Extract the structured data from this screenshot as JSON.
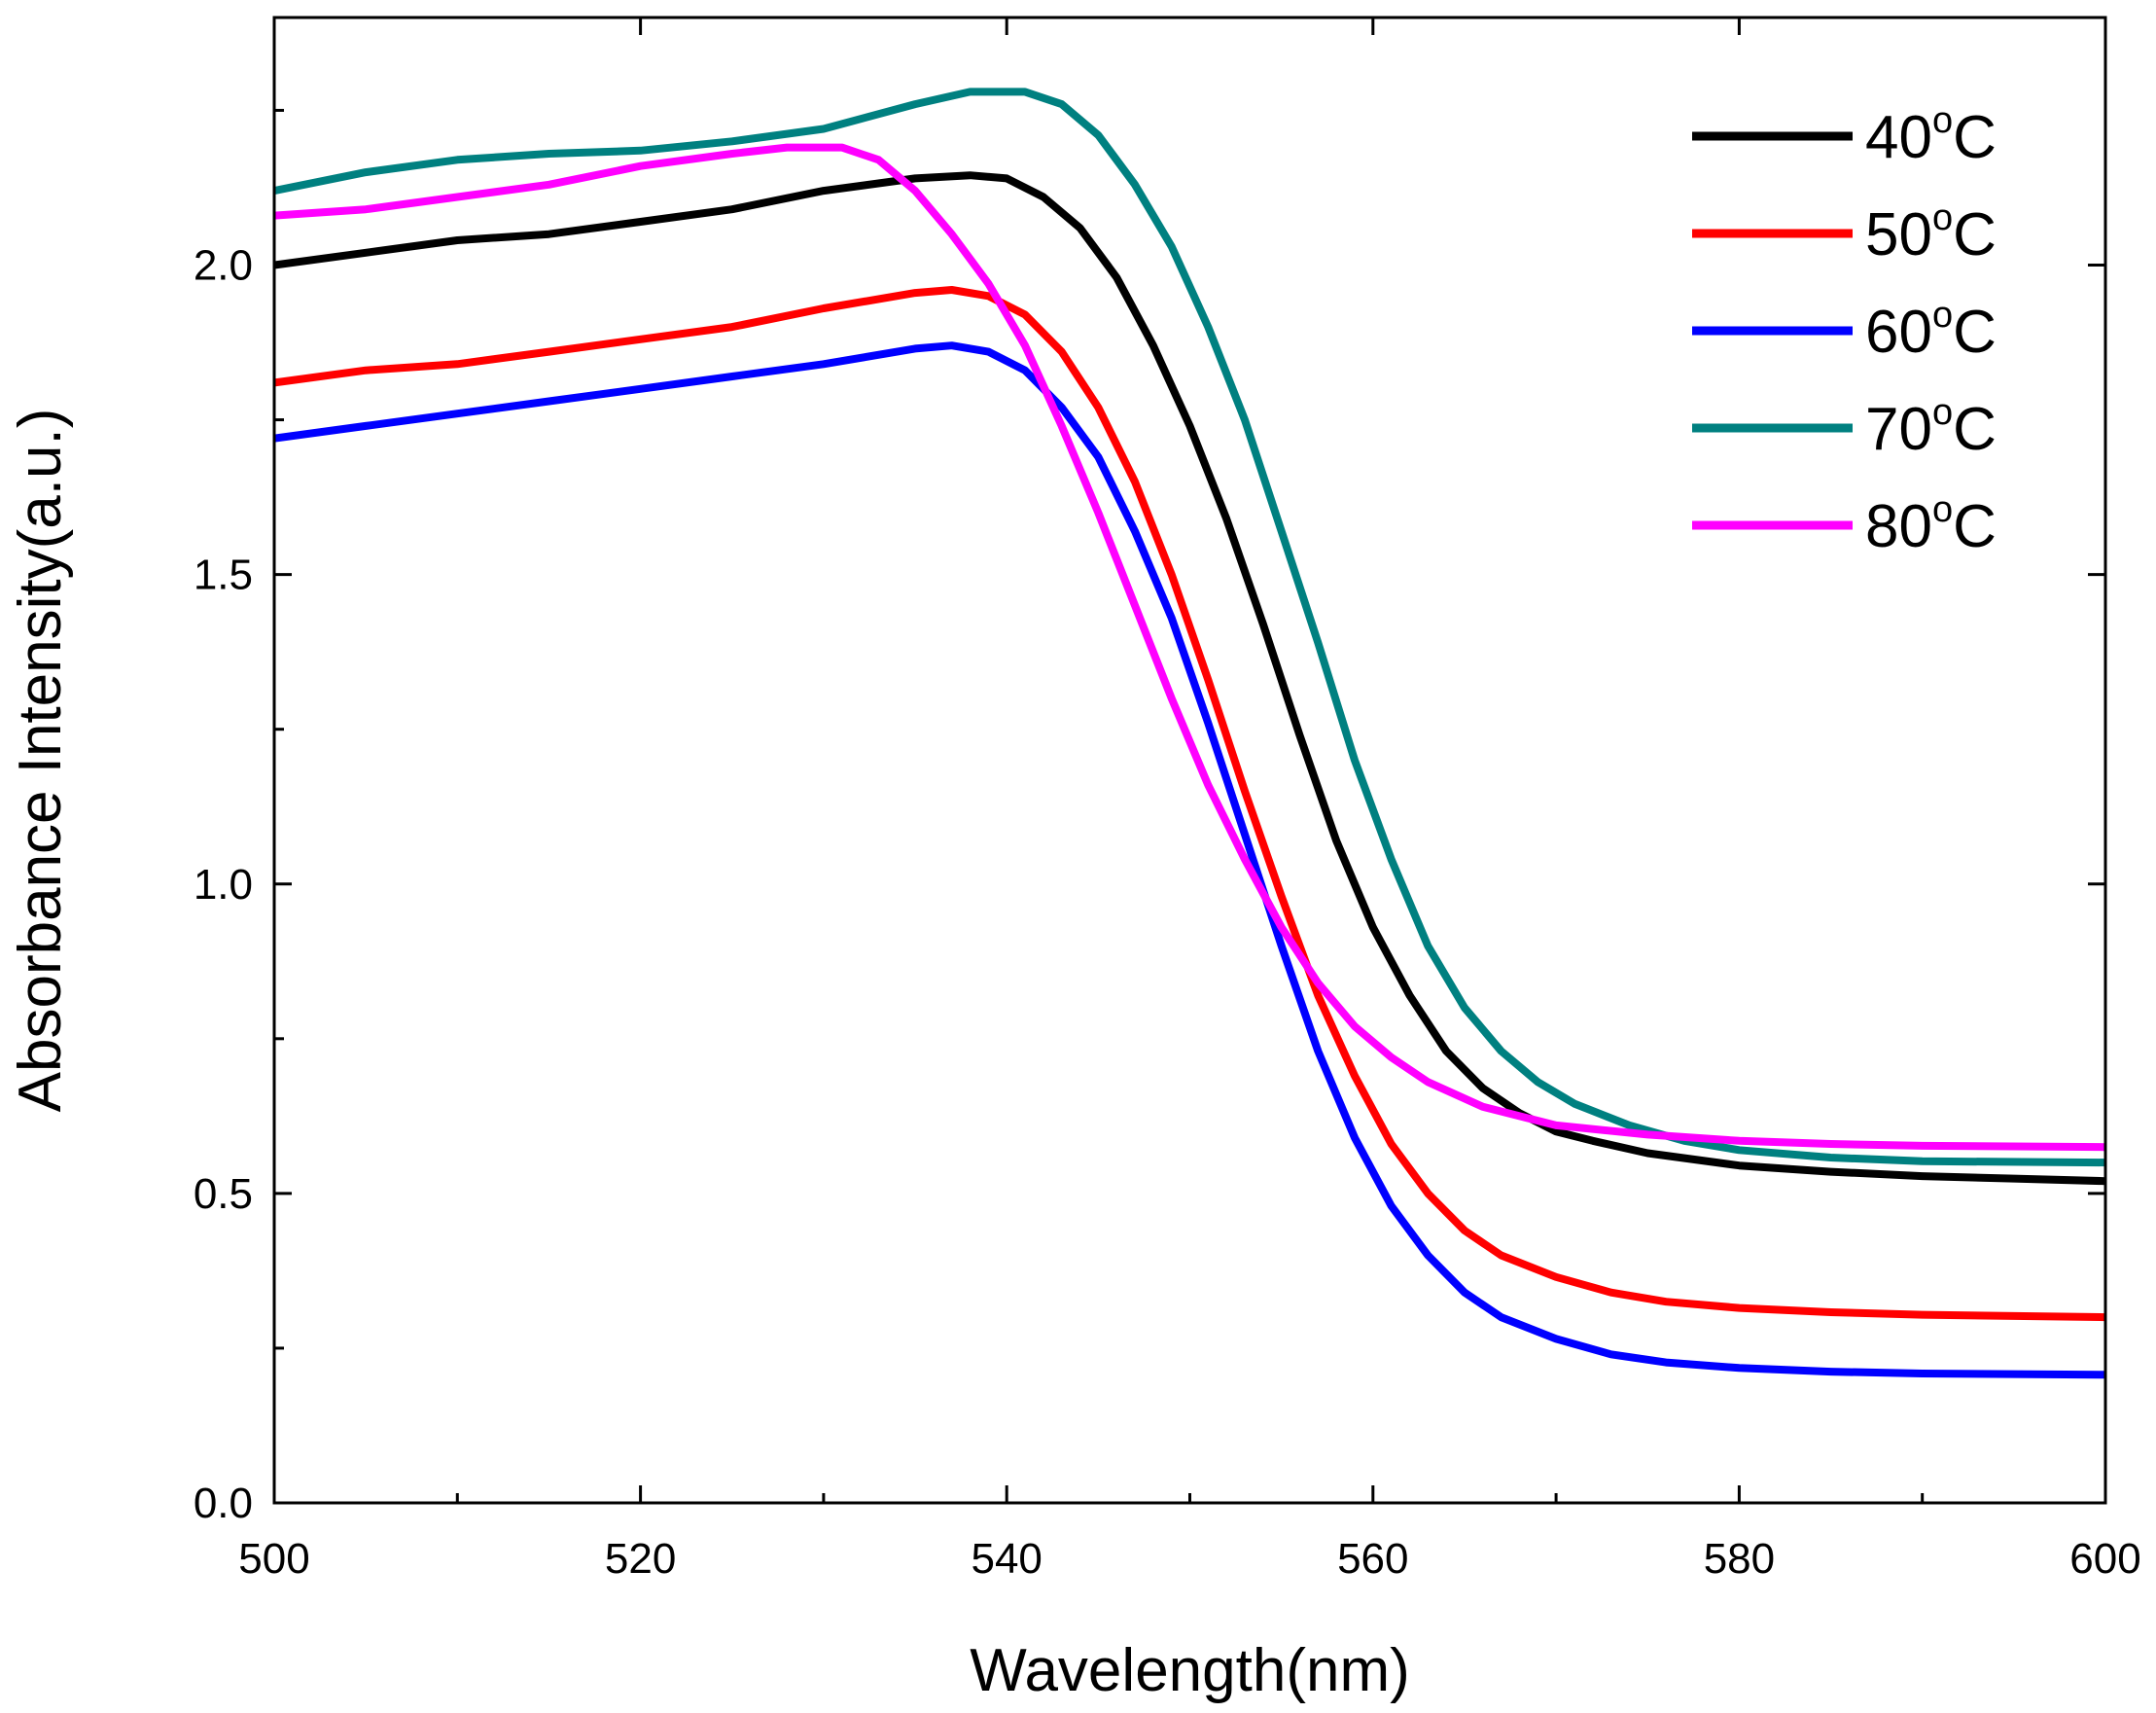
{
  "chart_data": {
    "type": "line",
    "title": "",
    "xlabel": "Wavelength(nm)",
    "ylabel": "Absorbance Intensity(a.u.)",
    "xlim": [
      500,
      600
    ],
    "ylim": [
      0.0,
      2.4
    ],
    "x_ticks": [
      "500",
      "520",
      "540",
      "560",
      "580",
      "600"
    ],
    "x_tick_values": [
      500,
      520,
      540,
      560,
      580,
      600
    ],
    "y_ticks": [
      "0.0",
      "0.5",
      "1.0",
      "1.5",
      "2.0"
    ],
    "y_tick_values": [
      0.0,
      0.5,
      1.0,
      1.5,
      2.0
    ],
    "grid": false,
    "legend_position": "top-right",
    "series": [
      {
        "name": "40",
        "unit_sup": "o",
        "unit": "C",
        "color": "#000000",
        "points": [
          [
            500,
            2.0
          ],
          [
            505,
            2.02
          ],
          [
            510,
            2.04
          ],
          [
            515,
            2.05
          ],
          [
            520,
            2.07
          ],
          [
            525,
            2.09
          ],
          [
            530,
            2.12
          ],
          [
            535,
            2.14
          ],
          [
            538,
            2.145
          ],
          [
            540,
            2.14
          ],
          [
            542,
            2.11
          ],
          [
            544,
            2.06
          ],
          [
            546,
            1.98
          ],
          [
            548,
            1.87
          ],
          [
            550,
            1.74
          ],
          [
            552,
            1.59
          ],
          [
            554,
            1.42
          ],
          [
            556,
            1.24
          ],
          [
            558,
            1.07
          ],
          [
            560,
            0.93
          ],
          [
            562,
            0.82
          ],
          [
            564,
            0.73
          ],
          [
            566,
            0.67
          ],
          [
            568,
            0.63
          ],
          [
            570,
            0.6
          ],
          [
            572,
            0.585
          ],
          [
            575,
            0.565
          ],
          [
            580,
            0.545
          ],
          [
            585,
            0.535
          ],
          [
            590,
            0.528
          ],
          [
            595,
            0.524
          ],
          [
            600,
            0.52
          ]
        ]
      },
      {
        "name": "50",
        "unit_sup": "o",
        "unit": "C",
        "color": "#ff0000",
        "points": [
          [
            500,
            1.81
          ],
          [
            505,
            1.83
          ],
          [
            510,
            1.84
          ],
          [
            515,
            1.86
          ],
          [
            520,
            1.88
          ],
          [
            525,
            1.9
          ],
          [
            530,
            1.93
          ],
          [
            535,
            1.955
          ],
          [
            537,
            1.96
          ],
          [
            539,
            1.95
          ],
          [
            541,
            1.92
          ],
          [
            543,
            1.86
          ],
          [
            545,
            1.77
          ],
          [
            547,
            1.65
          ],
          [
            549,
            1.5
          ],
          [
            551,
            1.33
          ],
          [
            553,
            1.15
          ],
          [
            555,
            0.98
          ],
          [
            557,
            0.82
          ],
          [
            559,
            0.69
          ],
          [
            561,
            0.58
          ],
          [
            563,
            0.5
          ],
          [
            565,
            0.44
          ],
          [
            567,
            0.4
          ],
          [
            570,
            0.365
          ],
          [
            573,
            0.34
          ],
          [
            576,
            0.325
          ],
          [
            580,
            0.315
          ],
          [
            585,
            0.308
          ],
          [
            590,
            0.304
          ],
          [
            600,
            0.3
          ]
        ]
      },
      {
        "name": "60",
        "unit_sup": "o",
        "unit": "C",
        "color": "#0000ff",
        "points": [
          [
            500,
            1.72
          ],
          [
            505,
            1.74
          ],
          [
            510,
            1.76
          ],
          [
            515,
            1.78
          ],
          [
            520,
            1.8
          ],
          [
            525,
            1.82
          ],
          [
            530,
            1.84
          ],
          [
            535,
            1.865
          ],
          [
            537,
            1.87
          ],
          [
            539,
            1.86
          ],
          [
            541,
            1.83
          ],
          [
            543,
            1.77
          ],
          [
            545,
            1.69
          ],
          [
            547,
            1.57
          ],
          [
            549,
            1.43
          ],
          [
            551,
            1.26
          ],
          [
            553,
            1.08
          ],
          [
            555,
            0.9
          ],
          [
            557,
            0.73
          ],
          [
            559,
            0.59
          ],
          [
            561,
            0.48
          ],
          [
            563,
            0.4
          ],
          [
            565,
            0.34
          ],
          [
            567,
            0.3
          ],
          [
            570,
            0.265
          ],
          [
            573,
            0.24
          ],
          [
            576,
            0.227
          ],
          [
            580,
            0.218
          ],
          [
            585,
            0.212
          ],
          [
            590,
            0.209
          ],
          [
            600,
            0.207
          ]
        ]
      },
      {
        "name": "70",
        "unit_sup": "o",
        "unit": "C",
        "color": "#008080",
        "points": [
          [
            500,
            2.12
          ],
          [
            505,
            2.15
          ],
          [
            510,
            2.17
          ],
          [
            515,
            2.18
          ],
          [
            520,
            2.185
          ],
          [
            525,
            2.2
          ],
          [
            530,
            2.22
          ],
          [
            535,
            2.26
          ],
          [
            538,
            2.28
          ],
          [
            541,
            2.28
          ],
          [
            543,
            2.26
          ],
          [
            545,
            2.21
          ],
          [
            547,
            2.13
          ],
          [
            549,
            2.03
          ],
          [
            551,
            1.9
          ],
          [
            553,
            1.75
          ],
          [
            555,
            1.57
          ],
          [
            557,
            1.39
          ],
          [
            559,
            1.2
          ],
          [
            561,
            1.04
          ],
          [
            563,
            0.9
          ],
          [
            565,
            0.8
          ],
          [
            567,
            0.73
          ],
          [
            569,
            0.68
          ],
          [
            571,
            0.645
          ],
          [
            574,
            0.61
          ],
          [
            577,
            0.585
          ],
          [
            580,
            0.57
          ],
          [
            585,
            0.558
          ],
          [
            590,
            0.552
          ],
          [
            600,
            0.55
          ]
        ]
      },
      {
        "name": "80",
        "unit_sup": "o",
        "unit": "C",
        "color": "#ff00ff",
        "points": [
          [
            500,
            2.08
          ],
          [
            505,
            2.09
          ],
          [
            510,
            2.11
          ],
          [
            515,
            2.13
          ],
          [
            520,
            2.16
          ],
          [
            525,
            2.18
          ],
          [
            528,
            2.19
          ],
          [
            531,
            2.19
          ],
          [
            533,
            2.17
          ],
          [
            535,
            2.12
          ],
          [
            537,
            2.05
          ],
          [
            539,
            1.97
          ],
          [
            541,
            1.87
          ],
          [
            543,
            1.74
          ],
          [
            545,
            1.6
          ],
          [
            547,
            1.45
          ],
          [
            549,
            1.3
          ],
          [
            551,
            1.16
          ],
          [
            553,
            1.04
          ],
          [
            555,
            0.93
          ],
          [
            557,
            0.84
          ],
          [
            559,
            0.77
          ],
          [
            561,
            0.72
          ],
          [
            563,
            0.68
          ],
          [
            566,
            0.64
          ],
          [
            570,
            0.61
          ],
          [
            575,
            0.595
          ],
          [
            580,
            0.585
          ],
          [
            585,
            0.58
          ],
          [
            590,
            0.577
          ],
          [
            600,
            0.575
          ]
        ]
      }
    ]
  }
}
